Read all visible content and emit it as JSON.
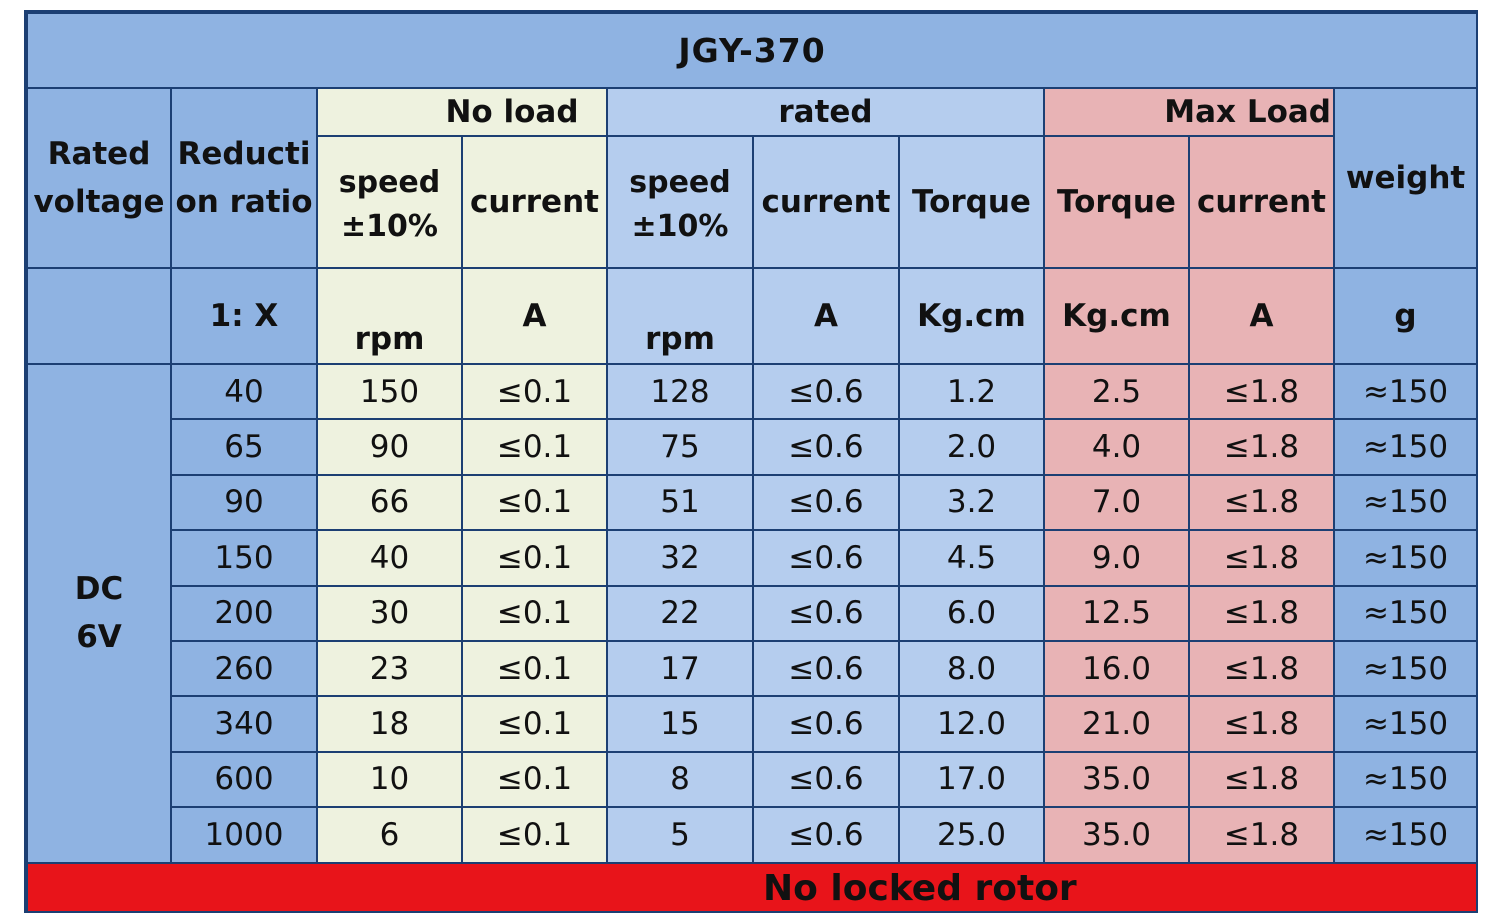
{
  "chart_data": {
    "type": "table",
    "title": "JGY-370",
    "groups": {
      "no_load": "No load",
      "rated": "rated",
      "max_load": "Max Load"
    },
    "headers": {
      "rated_voltage": [
        "Rated",
        "voltage"
      ],
      "reduction_ratio": [
        "Reducti",
        "on ratio"
      ],
      "nl_speed": [
        "speed",
        "±10%"
      ],
      "nl_current": "current",
      "r_speed": [
        "speed",
        "±10%"
      ],
      "r_current": "current",
      "r_torque": "Torque",
      "m_torque": "Torque",
      "m_current": "current",
      "weight": "weight"
    },
    "units": {
      "reduction_ratio": "1:  X",
      "nl_speed": "rpm",
      "nl_current": "A",
      "r_speed": "rpm",
      "r_current": "A",
      "r_torque": "Kg.cm",
      "m_torque": "Kg.cm",
      "m_current": "A",
      "weight": "g"
    },
    "voltage": [
      "DC",
      "6V"
    ],
    "rows": [
      {
        "ratio": "40",
        "nl_speed": "150",
        "nl_current": "≤0.1",
        "r_speed": "128",
        "r_current": "≤0.6",
        "r_torque": "1.2",
        "m_torque": "2.5",
        "m_current": "≤1.8",
        "weight": "≈150"
      },
      {
        "ratio": "65",
        "nl_speed": "90",
        "nl_current": "≤0.1",
        "r_speed": "75",
        "r_current": "≤0.6",
        "r_torque": "2.0",
        "m_torque": "4.0",
        "m_current": "≤1.8",
        "weight": "≈150"
      },
      {
        "ratio": "90",
        "nl_speed": "66",
        "nl_current": "≤0.1",
        "r_speed": "51",
        "r_current": "≤0.6",
        "r_torque": "3.2",
        "m_torque": "7.0",
        "m_current": "≤1.8",
        "weight": "≈150"
      },
      {
        "ratio": "150",
        "nl_speed": "40",
        "nl_current": "≤0.1",
        "r_speed": "32",
        "r_current": "≤0.6",
        "r_torque": "4.5",
        "m_torque": "9.0",
        "m_current": "≤1.8",
        "weight": "≈150"
      },
      {
        "ratio": "200",
        "nl_speed": "30",
        "nl_current": "≤0.1",
        "r_speed": "22",
        "r_current": "≤0.6",
        "r_torque": "6.0",
        "m_torque": "12.5",
        "m_current": "≤1.8",
        "weight": "≈150"
      },
      {
        "ratio": "260",
        "nl_speed": "23",
        "nl_current": "≤0.1",
        "r_speed": "17",
        "r_current": "≤0.6",
        "r_torque": "8.0",
        "m_torque": "16.0",
        "m_current": "≤1.8",
        "weight": "≈150"
      },
      {
        "ratio": "340",
        "nl_speed": "18",
        "nl_current": "≤0.1",
        "r_speed": "15",
        "r_current": "≤0.6",
        "r_torque": "12.0",
        "m_torque": "21.0",
        "m_current": "≤1.8",
        "weight": "≈150"
      },
      {
        "ratio": "600",
        "nl_speed": "10",
        "nl_current": "≤0.1",
        "r_speed": "8",
        "r_current": "≤0.6",
        "r_torque": "17.0",
        "m_torque": "35.0",
        "m_current": "≤1.8",
        "weight": "≈150"
      },
      {
        "ratio": "1000",
        "nl_speed": "6",
        "nl_current": "≤0.1",
        "r_speed": "5",
        "r_current": "≤0.6",
        "r_torque": "25.0",
        "m_torque": "35.0",
        "m_current": "≤1.8",
        "weight": "≈150"
      }
    ],
    "footer": "No locked rotor",
    "colors": {
      "header_blue": "#8fb3e2",
      "rated_blue": "#b5cdee",
      "no_load_green": "#eef2df",
      "max_load_pink": "#e8b3b5",
      "footer_red": "#e8141a",
      "border": "#1c3f73"
    }
  }
}
